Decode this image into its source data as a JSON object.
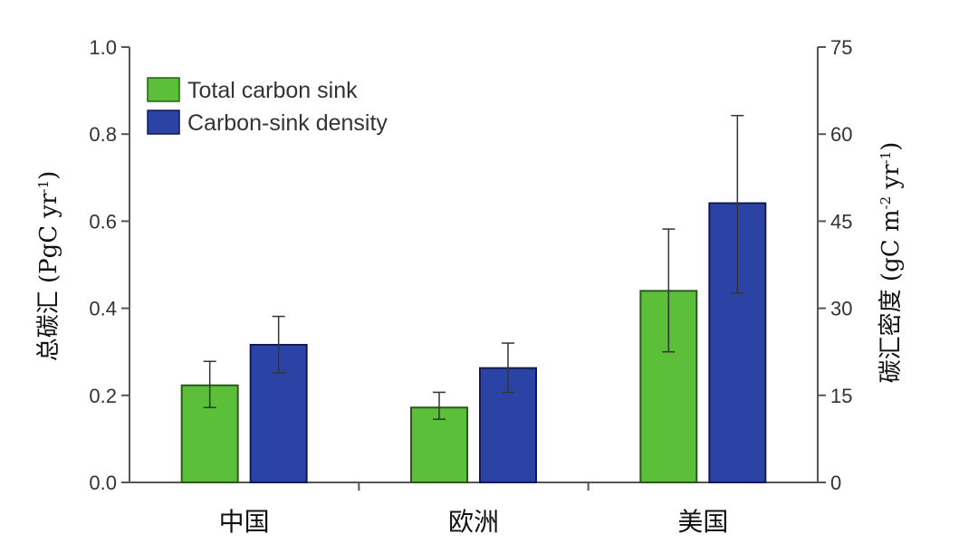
{
  "chart_data": {
    "type": "bar",
    "categories": [
      "中国",
      "欧洲",
      "美国"
    ],
    "series": [
      {
        "name": "Total carbon sink",
        "axis": "left",
        "color": "#5cbf3a",
        "values": [
          0.223,
          0.172,
          0.44
        ],
        "error_low": [
          0.172,
          0.145,
          0.3
        ],
        "error_high": [
          0.278,
          0.207,
          0.582
        ]
      },
      {
        "name": "Carbon-sink density",
        "axis": "right",
        "color": "#2c43a6",
        "values": [
          23.7,
          19.7,
          48.1
        ],
        "error_low": [
          18.9,
          15.5,
          32.6
        ],
        "error_high": [
          28.6,
          24.0,
          63.2
        ]
      }
    ],
    "left_axis": {
      "label": "总碳汇 (PgC yr",
      "label_sup": "-1",
      "label_end": ")",
      "ylim": [
        0,
        1.0
      ],
      "ticks": [
        "0.0",
        "0.2",
        "0.4",
        "0.6",
        "0.8",
        "1.0"
      ]
    },
    "right_axis": {
      "label": "碳汇密度 (gC m",
      "label_sup1": "-2",
      "label_mid": " yr",
      "label_sup2": "-1",
      "label_end": ")",
      "ylim": [
        0,
        75
      ],
      "ticks": [
        "0",
        "15",
        "30",
        "45",
        "60",
        "75"
      ]
    },
    "legend": {
      "position": "top-left"
    },
    "grid": false
  }
}
